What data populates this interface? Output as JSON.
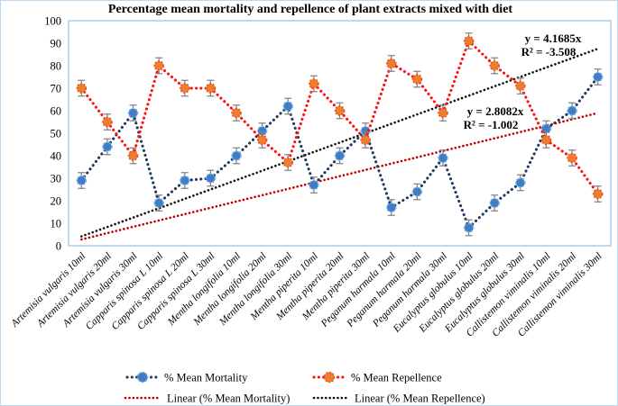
{
  "chart_data": {
    "type": "line",
    "title": "Percentage mean mortality and repellence of plant extracts mixed with diet",
    "xlabel": "",
    "ylabel": "",
    "ylim": [
      0,
      100
    ],
    "y_ticks": [
      0,
      10,
      20,
      30,
      40,
      50,
      60,
      70,
      80,
      90,
      100
    ],
    "grid": false,
    "legend_position": "bottom",
    "categories": [
      "Artemisia vulgaris 10ml",
      "Artemisia vulgaris 20ml",
      "Artemisia vulgaris 30ml",
      "Capparis spinosa L 10ml",
      "Capparis spinosa L 20ml",
      "Capparis spinosa L 30ml",
      "Mentha longifolia 10ml",
      "Mentha longifolia 20ml",
      "Mentha longifolia 30ml",
      "Mentha piperita 10ml",
      "Mentha piperita 20ml",
      "Mentha piperita 30ml",
      "Peganum harmala 10ml",
      "Peganum harmala 20ml",
      "Peganum harmala 30ml",
      "Eucalyptus globulus 10ml",
      "Eucalyptus globulus 20ml",
      "Eucalyptus globulus 30ml",
      "Callistemon viminalis 10ml",
      "Callistemon viminalis 20ml",
      "Callistemon viminalis 30ml"
    ],
    "series": [
      {
        "name": "% Mean Mortality",
        "line_color": "#1f3864",
        "marker_fill": "#3f7dc6",
        "marker_edge": "#7eb0e0",
        "values": [
          29,
          44,
          59,
          19,
          29,
          30,
          40,
          51,
          62,
          27,
          40,
          51,
          17,
          24,
          39,
          8,
          19,
          28,
          52,
          60,
          75
        ],
        "error_bar": 3.5
      },
      {
        "name": "% Mean Repellence",
        "line_color": "#ff1111",
        "marker_fill": "#ed7d31",
        "marker_edge": "#e8541e",
        "values": [
          70,
          55,
          40,
          80,
          70,
          70,
          59,
          47,
          37,
          72,
          60,
          47,
          81,
          74,
          59,
          91,
          80,
          71,
          47,
          39,
          23
        ],
        "error_bar": 3.5
      }
    ],
    "trendlines": [
      {
        "name": "Linear (% Mean Mortality)",
        "color": "#c00000",
        "slope": 2.8082,
        "equation": "y = 2.8082x",
        "r_squared": "R² = -1.002"
      },
      {
        "name": "Linear (% Mean Repellence)",
        "color": "#111111",
        "slope": 4.1685,
        "equation": "y = 4.1685x",
        "r_squared": "R² = -3.508"
      }
    ]
  }
}
